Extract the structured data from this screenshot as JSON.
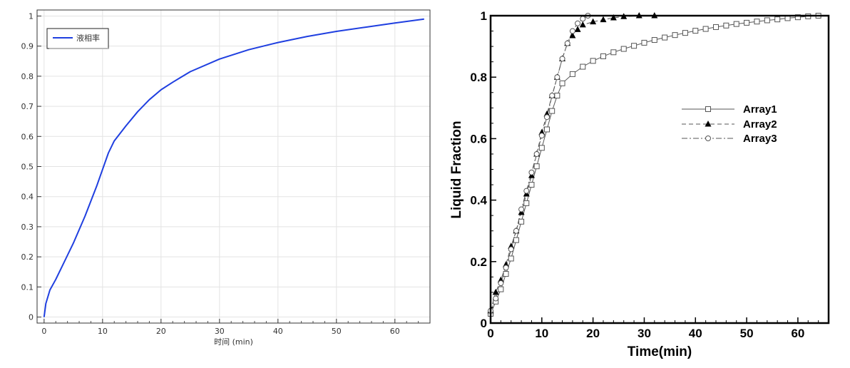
{
  "chart_data": [
    {
      "type": "line",
      "title": "",
      "xlabel": "时间 (min)",
      "ylabel": "",
      "xlim": [
        -1.2,
        66
      ],
      "ylim": [
        -0.02,
        1.02
      ],
      "x_ticks": [
        "0",
        "10",
        "20",
        "30",
        "40",
        "50",
        "60"
      ],
      "y_ticks": [
        "0",
        "0.1",
        "0.2",
        "0.3",
        "0.4",
        "0.5",
        "0.6",
        "0.7",
        "0.8",
        "0.9",
        "1"
      ],
      "grid": true,
      "legend_position": "top-left",
      "colors": {
        "series": "#1f3fe0",
        "grid": "#e3e3e3",
        "axis": "#333333"
      },
      "series": [
        {
          "name": "液相率",
          "x": [
            0,
            0.3,
            1,
            2,
            3,
            4,
            5,
            6,
            7,
            8,
            9,
            10,
            11,
            12,
            14,
            16,
            18,
            20,
            22,
            25,
            30,
            35,
            40,
            45,
            50,
            55,
            60,
            65
          ],
          "y": [
            0,
            0.045,
            0.09,
            0.125,
            0.165,
            0.205,
            0.245,
            0.29,
            0.335,
            0.385,
            0.435,
            0.49,
            0.545,
            0.585,
            0.635,
            0.682,
            0.722,
            0.755,
            0.78,
            0.815,
            0.857,
            0.888,
            0.912,
            0.932,
            0.949,
            0.963,
            0.977,
            0.99
          ]
        }
      ]
    },
    {
      "type": "line",
      "title": "",
      "xlabel": "Time(min)",
      "ylabel": "Liquid Fraction",
      "xlim": [
        0,
        66
      ],
      "ylim": [
        0,
        1
      ],
      "x_ticks": [
        "0",
        "10",
        "20",
        "30",
        "40",
        "50",
        "60"
      ],
      "y_ticks": [
        "0",
        "0.2",
        "0.4",
        "0.6",
        "0.8",
        "1"
      ],
      "grid": false,
      "legend_position": "right",
      "series": [
        {
          "name": "Array1",
          "marker": "square",
          "dash": "solid",
          "x": [
            0,
            1,
            2,
            3,
            4,
            5,
            6,
            7,
            8,
            9,
            10,
            11,
            12,
            13,
            14,
            16,
            18,
            20,
            22,
            24,
            26,
            28,
            30,
            32,
            34,
            36,
            38,
            40,
            42,
            44,
            46,
            48,
            50,
            52,
            54,
            56,
            58,
            60,
            62,
            64
          ],
          "y": [
            0.03,
            0.07,
            0.11,
            0.16,
            0.21,
            0.27,
            0.33,
            0.39,
            0.45,
            0.51,
            0.57,
            0.63,
            0.69,
            0.74,
            0.78,
            0.81,
            0.834,
            0.853,
            0.868,
            0.881,
            0.892,
            0.902,
            0.912,
            0.921,
            0.929,
            0.937,
            0.944,
            0.951,
            0.957,
            0.963,
            0.968,
            0.973,
            0.977,
            0.981,
            0.985,
            0.988,
            0.992,
            0.995,
            0.998,
            1.0
          ]
        },
        {
          "name": "Array2",
          "marker": "triangle",
          "dash": "dashed",
          "x": [
            0,
            1,
            2,
            3,
            4,
            5,
            6,
            7,
            8,
            9,
            10,
            11,
            12,
            13,
            14,
            15,
            16,
            17,
            18,
            20,
            22,
            24,
            26,
            29,
            32
          ],
          "y": [
            0.04,
            0.1,
            0.14,
            0.19,
            0.25,
            0.3,
            0.36,
            0.42,
            0.48,
            0.55,
            0.62,
            0.68,
            0.74,
            0.8,
            0.86,
            0.91,
            0.935,
            0.955,
            0.97,
            0.98,
            0.987,
            0.993,
            0.997,
            1.0,
            1.0
          ]
        },
        {
          "name": "Array3",
          "marker": "circle",
          "dash": "dashdot",
          "x": [
            0,
            1,
            2,
            3,
            4,
            5,
            6,
            7,
            8,
            9,
            10,
            11,
            12,
            13,
            14,
            15,
            16,
            17,
            18,
            19
          ],
          "y": [
            0.04,
            0.08,
            0.13,
            0.18,
            0.24,
            0.3,
            0.37,
            0.43,
            0.49,
            0.55,
            0.61,
            0.67,
            0.74,
            0.8,
            0.86,
            0.91,
            0.95,
            0.975,
            0.99,
            1.0
          ]
        }
      ]
    }
  ]
}
